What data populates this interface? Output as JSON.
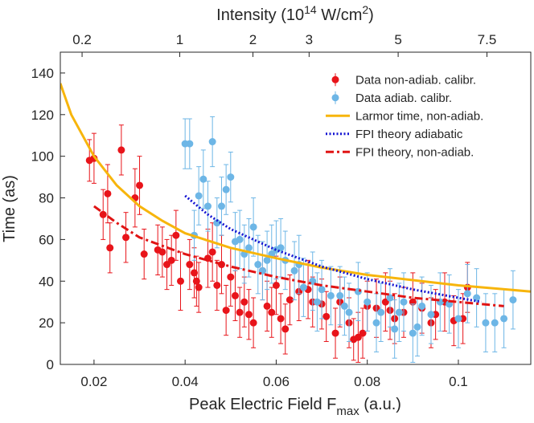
{
  "chart_data": {
    "type": "errorbar",
    "x_label": [
      "Peak Electric Field F",
      "max",
      " (a.u.)"
    ],
    "y_label": "Time (as)",
    "x2_label": [
      "Intensity (10",
      "14",
      " W/cm",
      "2",
      ")"
    ],
    "xlim": [
      0.0126,
      0.1159
    ],
    "xticks": [
      0.02,
      0.04,
      0.06,
      0.08,
      0.1
    ],
    "ylim": [
      0,
      150
    ],
    "yticks": [
      0,
      20,
      40,
      60,
      80,
      100,
      120,
      140
    ],
    "x2lim": [
      0.105,
      8.92
    ],
    "x2scale": "sqrt",
    "x2ticks": [
      0.2,
      1,
      2,
      3,
      5,
      7.5
    ],
    "legend": "upper right",
    "grid": false,
    "series": [
      {
        "name": "Data non-adiab. calibr.",
        "type": "errorbar",
        "color": "#e8141a",
        "x": [
          0.019,
          0.02,
          0.022,
          0.023,
          0.0235,
          0.026,
          0.027,
          0.029,
          0.03,
          0.031,
          0.034,
          0.035,
          0.036,
          0.037,
          0.038,
          0.039,
          0.041,
          0.042,
          0.0425,
          0.043,
          0.045,
          0.046,
          0.047,
          0.048,
          0.049,
          0.05,
          0.051,
          0.052,
          0.053,
          0.054,
          0.055,
          0.057,
          0.058,
          0.059,
          0.06,
          0.061,
          0.062,
          0.063,
          0.065,
          0.067,
          0.068,
          0.07,
          0.071,
          0.073,
          0.074,
          0.076,
          0.077,
          0.078,
          0.079,
          0.08,
          0.082,
          0.084,
          0.085,
          0.086,
          0.088,
          0.09,
          0.092,
          0.094,
          0.095,
          0.097,
          0.099,
          0.101,
          0.102
        ],
        "values": [
          98,
          99,
          72,
          82,
          56,
          103,
          61,
          80,
          86,
          53,
          55,
          54,
          48,
          50,
          62,
          40,
          48,
          44,
          40,
          37,
          51,
          54,
          38,
          48,
          26,
          42,
          33,
          25,
          30,
          24,
          20,
          45,
          28,
          25,
          38,
          22,
          17,
          31,
          35,
          36,
          30,
          29,
          23,
          15,
          30,
          20,
          12,
          13,
          15,
          28,
          27,
          30,
          26,
          22,
          25,
          30,
          27,
          20,
          24,
          30,
          21,
          22,
          37
        ],
        "errors": [
          10,
          12,
          12,
          14,
          12,
          12,
          12,
          14,
          14,
          12,
          12,
          12,
          12,
          12,
          12,
          14,
          12,
          12,
          12,
          12,
          14,
          14,
          12,
          14,
          12,
          14,
          12,
          12,
          12,
          12,
          12,
          14,
          12,
          12,
          14,
          12,
          12,
          12,
          14,
          14,
          12,
          12,
          12,
          12,
          12,
          12,
          10,
          12,
          12,
          12,
          14,
          14,
          14,
          12,
          12,
          14,
          12,
          12,
          12,
          14,
          12,
          12,
          12
        ]
      },
      {
        "name": "Data adiab. calibr.",
        "type": "errorbar",
        "color": "#6db6e6",
        "x": [
          0.04,
          0.041,
          0.042,
          0.043,
          0.044,
          0.045,
          0.046,
          0.047,
          0.048,
          0.049,
          0.05,
          0.051,
          0.052,
          0.053,
          0.054,
          0.055,
          0.056,
          0.057,
          0.058,
          0.059,
          0.06,
          0.061,
          0.062,
          0.064,
          0.065,
          0.066,
          0.068,
          0.069,
          0.07,
          0.072,
          0.074,
          0.075,
          0.076,
          0.078,
          0.08,
          0.082,
          0.083,
          0.085,
          0.086,
          0.087,
          0.088,
          0.09,
          0.091,
          0.092,
          0.094,
          0.096,
          0.098,
          0.1,
          0.102,
          0.104,
          0.106,
          0.108,
          0.11,
          0.112
        ],
        "values": [
          106,
          106,
          62,
          81,
          89,
          76,
          107,
          68,
          76,
          84,
          90,
          59,
          60,
          53,
          56,
          66,
          48,
          45,
          50,
          53,
          55,
          56,
          50,
          45,
          48,
          37,
          40,
          30,
          36,
          33,
          33,
          28,
          25,
          35,
          30,
          20,
          25,
          32,
          17,
          25,
          30,
          15,
          18,
          28,
          24,
          30,
          29,
          22,
          34,
          32,
          20,
          20,
          22,
          31
        ],
        "errors": [
          12,
          12,
          12,
          14,
          14,
          12,
          12,
          12,
          14,
          12,
          12,
          14,
          14,
          14,
          14,
          14,
          14,
          14,
          14,
          14,
          14,
          14,
          14,
          14,
          14,
          14,
          14,
          14,
          14,
          14,
          14,
          14,
          14,
          14,
          14,
          14,
          14,
          14,
          14,
          14,
          14,
          14,
          14,
          14,
          14,
          14,
          14,
          14,
          14,
          14,
          14,
          14,
          14,
          14
        ]
      },
      {
        "name": "Larmor time, non-adiab.",
        "type": "line",
        "dash": "solid",
        "color": "#f7b50c",
        "x": [
          0.0126,
          0.015,
          0.02,
          0.025,
          0.03,
          0.035,
          0.04,
          0.05,
          0.06,
          0.07,
          0.08,
          0.09,
          0.1,
          0.1159
        ],
        "values": [
          135,
          120,
          100,
          86,
          76,
          69,
          63,
          56,
          51,
          46.5,
          43,
          40.5,
          38,
          35
        ]
      },
      {
        "name": "FPI theory adiabatic",
        "type": "line",
        "dash": "dotted",
        "color": "#1414d2",
        "x": [
          0.04,
          0.045,
          0.05,
          0.06,
          0.07,
          0.08,
          0.09,
          0.1,
          0.105
        ],
        "values": [
          81,
          72,
          65,
          55,
          47,
          41,
          36,
          32,
          30
        ]
      },
      {
        "name": "FPI theory, non-adiab.",
        "type": "line",
        "dash": "dashdot",
        "color": "#e01414",
        "x": [
          0.02,
          0.025,
          0.03,
          0.04,
          0.05,
          0.06,
          0.07,
          0.08,
          0.09,
          0.1,
          0.11
        ],
        "values": [
          76,
          68,
          61,
          53,
          47,
          42,
          38,
          35,
          32,
          30,
          28
        ]
      }
    ]
  }
}
